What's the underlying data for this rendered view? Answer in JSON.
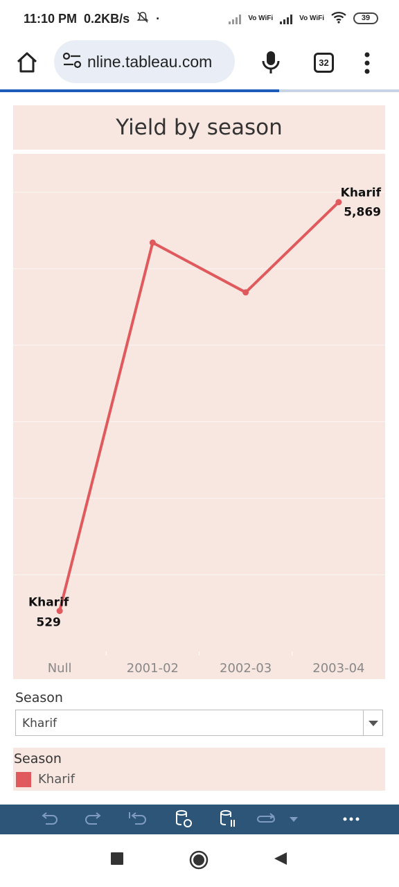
{
  "status_bar": {
    "time": "11:10 PM",
    "speed": "0.2KB/s",
    "vowifi_1": "Vo WiFi",
    "vowifi_2": "Vo WiFi",
    "battery": "39"
  },
  "browser": {
    "url": "nline.tableau.com",
    "tab_count": "32",
    "load_progress": 0.7
  },
  "dashboard": {
    "title": "Yield by season",
    "filter": {
      "label": "Season",
      "selected": "Kharif"
    },
    "legend": {
      "title": "Season",
      "item": "Kharif",
      "color": "#e05a5d"
    }
  },
  "chart_data": {
    "type": "line",
    "title": "Yield by season",
    "categories": [
      "Null",
      "2001-02",
      "2002-03",
      "2003-04"
    ],
    "series": [
      {
        "name": "Kharif",
        "values": [
          529,
          5340,
          4690,
          5869
        ],
        "color": "#e05a5d"
      }
    ],
    "data_labels": [
      {
        "index": 0,
        "series": "Kharif",
        "value": "529"
      },
      {
        "index": 3,
        "series": "Kharif",
        "value": "5,869"
      }
    ],
    "ylim": [
      0,
      6500
    ],
    "grid": true,
    "legend": "bottom"
  },
  "colors": {
    "background_tint": "#f8e6e0",
    "line": "#e05a5d",
    "toolbar": "#2c5577",
    "progress": "#1d5bb8"
  }
}
